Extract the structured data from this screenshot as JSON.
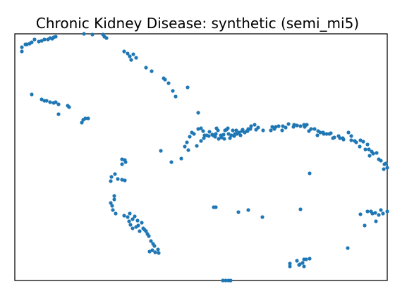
{
  "chart_data": {
    "type": "scatter",
    "title": "Chronic Kidney Disease: synthetic (semi_mi5)",
    "xlabel": "",
    "ylabel": "",
    "xlim": [
      0,
      528
    ],
    "ylim": [
      0,
      350
    ],
    "grid": false,
    "legend": "none",
    "ticks": false,
    "series": [
      {
        "color": "#1f77b4",
        "points": [
          [
            10,
            331
          ],
          [
            10,
            325
          ],
          [
            15,
            335
          ],
          [
            17,
            335
          ],
          [
            21,
            336
          ],
          [
            24,
            338
          ],
          [
            28,
            342
          ],
          [
            34,
            339
          ],
          [
            38,
            340
          ],
          [
            42,
            342
          ],
          [
            47,
            342
          ],
          [
            50,
            344
          ],
          [
            53,
            343
          ],
          [
            55,
            345
          ],
          [
            58,
            346
          ],
          [
            98,
            350
          ],
          [
            110,
            349
          ],
          [
            125,
            349
          ],
          [
            127,
            346
          ],
          [
            130,
            344
          ],
          [
            155,
            325
          ],
          [
            160,
            322
          ],
          [
            163,
            318
          ],
          [
            165,
            313
          ],
          [
            168,
            321
          ],
          [
            172,
            316
          ],
          [
            186,
            302
          ],
          [
            194,
            297
          ],
          [
            211,
            287
          ],
          [
            213,
            285
          ],
          [
            218,
            280
          ],
          [
            224,
            269
          ],
          [
            228,
            261
          ],
          [
            245,
            274
          ],
          [
            24,
            264
          ],
          [
            38,
            257
          ],
          [
            42,
            255
          ],
          [
            45,
            255
          ],
          [
            50,
            253
          ],
          [
            55,
            252
          ],
          [
            58,
            253
          ],
          [
            62,
            250
          ],
          [
            75,
            248
          ],
          [
            77,
            246
          ],
          [
            62,
            236
          ],
          [
            100,
            230
          ],
          [
            97,
            228
          ],
          [
            104,
            230
          ],
          [
            95,
            224
          ],
          [
            260,
            238
          ],
          [
            264,
            216
          ],
          [
            269,
            206
          ],
          [
            275,
            205
          ],
          [
            280,
            207
          ],
          [
            284,
            204
          ],
          [
            285,
            208
          ],
          [
            292,
            206
          ],
          [
            300,
            214
          ],
          [
            302,
            216
          ],
          [
            307,
            206
          ],
          [
            311,
            205
          ],
          [
            315,
            208
          ],
          [
            318,
            210
          ],
          [
            320,
            206
          ],
          [
            326,
            210
          ],
          [
            330,
            212
          ],
          [
            334,
            215
          ],
          [
            340,
            221
          ],
          [
            365,
            218
          ],
          [
            370,
            218
          ],
          [
            374,
            219
          ],
          [
            380,
            219
          ],
          [
            388,
            222
          ],
          [
            400,
            220
          ],
          [
            411,
            218
          ],
          [
            420,
            215
          ],
          [
            430,
            212
          ],
          [
            438,
            208
          ],
          [
            442,
            208
          ],
          [
            448,
            209
          ],
          [
            451,
            202
          ],
          [
            459,
            205
          ],
          [
            465,
            202
          ],
          [
            477,
            205
          ],
          [
            490,
            199
          ],
          [
            494,
            197
          ],
          [
            500,
            193
          ],
          [
            502,
            186
          ],
          [
            508,
            180
          ],
          [
            513,
            181
          ],
          [
            519,
            170
          ],
          [
            524,
            165
          ],
          [
            528,
            160
          ],
          [
            286,
            216
          ],
          [
            288,
            213
          ],
          [
            293,
            203
          ],
          [
            296,
            207
          ],
          [
            298,
            213
          ],
          [
            305,
            202
          ],
          [
            309,
            213
          ],
          [
            312,
            208
          ],
          [
            323,
            214
          ],
          [
            329,
            212
          ],
          [
            335,
            219
          ],
          [
            345,
            217
          ],
          [
            363,
            213
          ],
          [
            379,
            213
          ],
          [
            395,
            218
          ],
          [
            405,
            219
          ],
          [
            414,
            221
          ],
          [
            425,
            215
          ],
          [
            433,
            210
          ],
          [
            446,
            208
          ],
          [
            461,
            202
          ],
          [
            473,
            210
          ],
          [
            482,
            198
          ],
          [
            497,
            186
          ],
          [
            506,
            183
          ],
          [
            244,
            196
          ],
          [
            241,
            190
          ],
          [
            248,
            204
          ],
          [
            251,
            210
          ],
          [
            254,
            208
          ],
          [
            260,
            215
          ],
          [
            267,
            212
          ],
          [
            272,
            206
          ],
          [
            276,
            211
          ],
          [
            207,
            184
          ],
          [
            222,
            168
          ],
          [
            156,
            171
          ],
          [
            152,
            172
          ],
          [
            152,
            165
          ],
          [
            157,
            168
          ],
          [
            137,
            147
          ],
          [
            142,
            151
          ],
          [
            136,
            141
          ],
          [
            146,
            144
          ],
          [
            152,
            143
          ],
          [
            156,
            142
          ],
          [
            141,
            120
          ],
          [
            141,
            115
          ],
          [
            136,
            110
          ],
          [
            138,
            106
          ],
          [
            139,
            100
          ],
          [
            143,
            95
          ],
          [
            155,
            92
          ],
          [
            160,
            90
          ],
          [
            162,
            84
          ],
          [
            167,
            87
          ],
          [
            164,
            79
          ],
          [
            167,
            74
          ],
          [
            172,
            76
          ],
          [
            175,
            78
          ],
          [
            177,
            70
          ],
          [
            182,
            74
          ],
          [
            186,
            70
          ],
          [
            190,
            63
          ],
          [
            193,
            56
          ],
          [
            196,
            52
          ],
          [
            198,
            49
          ],
          [
            195,
            43
          ],
          [
            191,
            41
          ],
          [
            199,
            40
          ],
          [
            204,
            39
          ],
          [
            203,
            44
          ],
          [
            163,
            95
          ],
          [
            170,
            91
          ],
          [
            174,
            85
          ],
          [
            180,
            82
          ],
          [
            184,
            72
          ],
          [
            188,
            66
          ],
          [
            282,
            104
          ],
          [
            285,
            104
          ],
          [
            317,
            97
          ],
          [
            331,
            100
          ],
          [
            351,
            90
          ],
          [
            405,
            101
          ],
          [
            418,
            152
          ],
          [
            472,
            46
          ],
          [
            490,
            94
          ],
          [
            500,
            98
          ],
          [
            505,
            98
          ],
          [
            507,
            95
          ],
          [
            511,
            96
          ],
          [
            516,
            93
          ],
          [
            519,
            100
          ],
          [
            522,
            95
          ],
          [
            528,
            98
          ],
          [
            512,
            84
          ],
          [
            496,
            78
          ],
          [
            390,
            24
          ],
          [
            390,
            20
          ],
          [
            400,
            28
          ],
          [
            404,
            23
          ],
          [
            410,
            20
          ],
          [
            410,
            30
          ],
          [
            413,
            30
          ],
          [
            418,
            31
          ],
          [
            403,
            22
          ],
          [
            408,
            25
          ],
          [
            295,
            0
          ],
          [
            299,
            0
          ],
          [
            303,
            0
          ],
          [
            306,
            0
          ],
          [
            236,
            173
          ],
          [
            246,
            185
          ],
          [
            258,
            191
          ],
          [
            264,
            198
          ],
          [
            268,
            202
          ],
          [
            281,
            206
          ],
          [
            289,
            201
          ],
          [
            297,
            201
          ],
          [
            303,
            208
          ],
          [
            314,
            213
          ],
          [
            322,
            212
          ],
          [
            331,
            215
          ],
          [
            342,
            214
          ],
          [
            352,
            213
          ],
          [
            368,
            215
          ],
          [
            384,
            217
          ],
          [
            396,
            221
          ],
          [
            410,
            221
          ],
          [
            417,
            212
          ],
          [
            429,
            206
          ],
          [
            437,
            210
          ],
          [
            453,
            203
          ],
          [
            466,
            200
          ],
          [
            477,
            199
          ],
          [
            484,
            196
          ],
          [
            489,
            190
          ],
          [
            503,
            177
          ],
          [
            516,
            172
          ],
          [
            523,
            158
          ],
          [
            526,
            166
          ]
        ]
      }
    ]
  }
}
